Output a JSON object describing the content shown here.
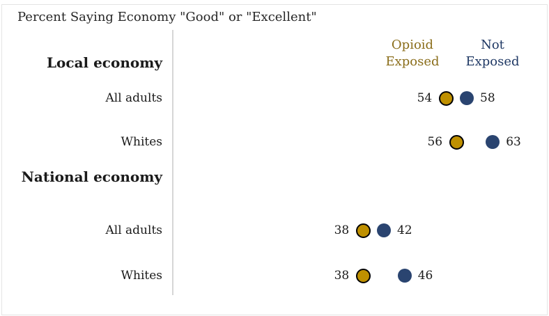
{
  "title": "Percent Saying Economy \"Good\" or \"Excellent\"",
  "colors": {
    "opioid_dot": "#BF9000",
    "opioid_dot_outline": "#000000",
    "not_exposed_dot": "#2A4470",
    "opioid_legend_text": "#8A6D1A",
    "not_exposed_legend_text": "#1F3864",
    "axis_line": "#D6D6D6",
    "text": "#1A1A1A"
  },
  "chart_data": {
    "type": "scatter",
    "subtype": "dot-plot",
    "title": "Percent Saying Economy \"Good\" or \"Excellent\"",
    "series": [
      "Opioid Exposed",
      "Not Exposed"
    ],
    "groups": [
      {
        "label": "Local economy",
        "rows": [
          {
            "label": "All adults",
            "values": {
              "Opioid Exposed": 54,
              "Not Exposed": 58
            }
          },
          {
            "label": "Whites",
            "values": {
              "Opioid Exposed": 56,
              "Not Exposed": 63
            }
          }
        ]
      },
      {
        "label": "National economy",
        "rows": [
          {
            "label": "All adults",
            "values": {
              "Opioid Exposed": 38,
              "Not Exposed": 42
            }
          },
          {
            "label": "Whites",
            "values": {
              "Opioid Exposed": 38,
              "Not Exposed": 46
            }
          }
        ]
      }
    ],
    "x_axis": {
      "visible_ticks": false,
      "baseline_value": 0,
      "approx_range": [
        0,
        74
      ]
    },
    "legend_position": "top-right",
    "value_labels": "outside dots",
    "grid": false
  }
}
